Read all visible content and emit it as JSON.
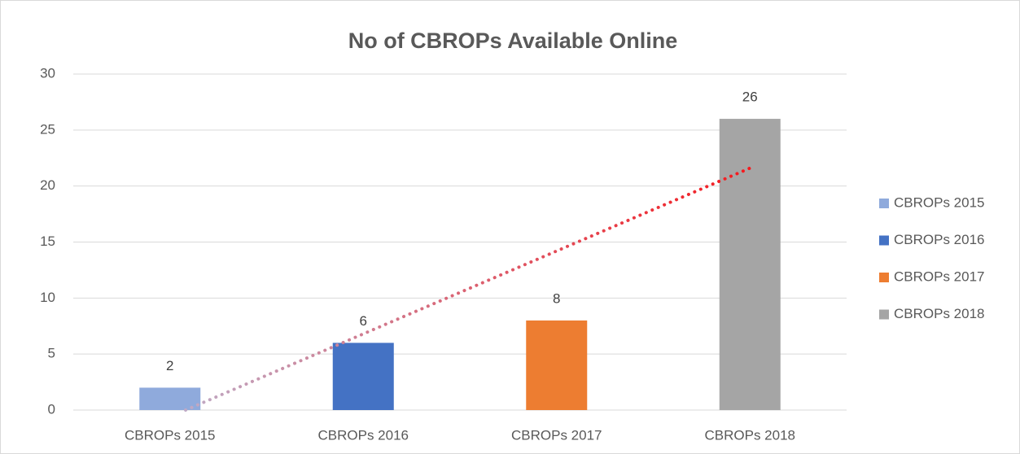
{
  "chart_data": {
    "type": "bar",
    "title": "No of CBROPs Available Online",
    "categories": [
      "CBROPs 2015",
      "CBROPs 2016",
      "CBROPs 2017",
      "CBROPs 2018"
    ],
    "values": [
      2,
      6,
      8,
      26
    ],
    "colors": [
      "#8faadc",
      "#4472c4",
      "#ed7d31",
      "#a5a5a5"
    ],
    "ylim": [
      0,
      30
    ],
    "yticks": [
      0,
      5,
      10,
      15,
      20,
      25,
      30
    ],
    "grid": true,
    "legend": "right",
    "data_labels": true,
    "trendline": {
      "kind": "linear",
      "colors": [
        "#b4c7e7",
        "#ff0000"
      ]
    }
  }
}
